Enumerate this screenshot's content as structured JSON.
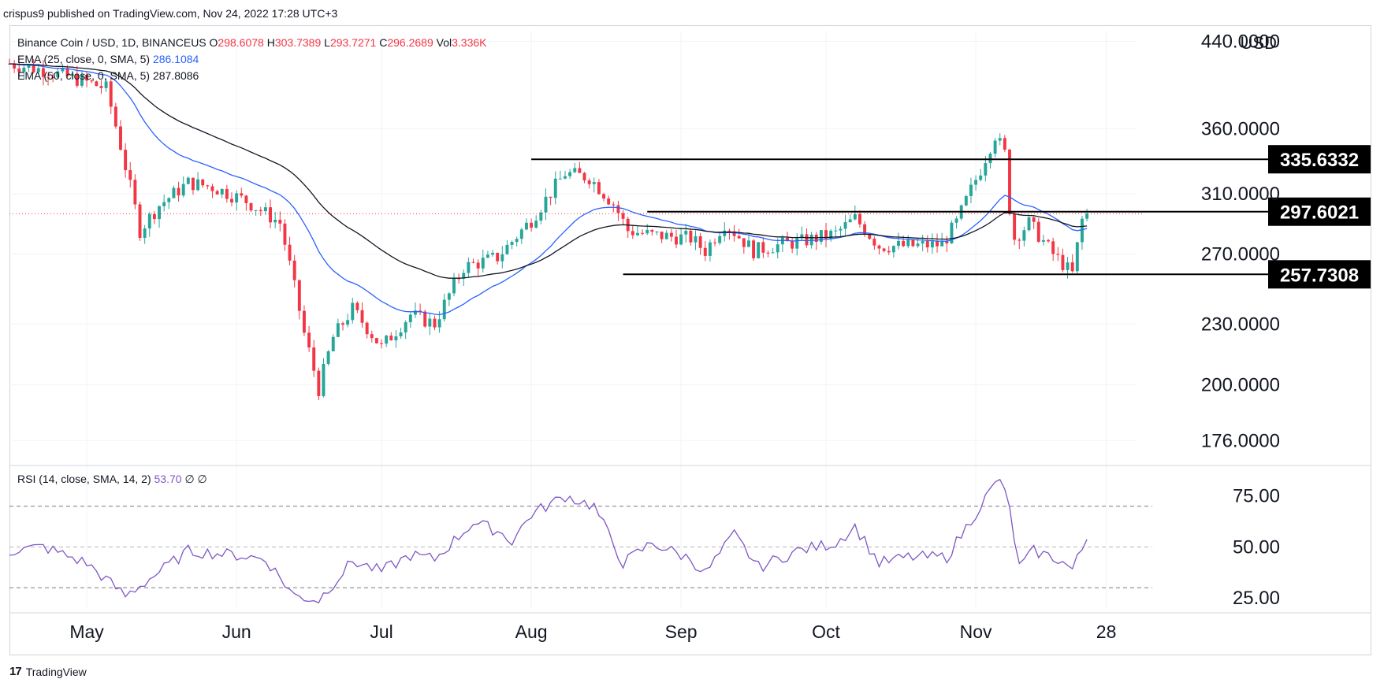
{
  "publisher_line": "crispus9 published on TradingView.com, Nov 24, 2022 17:28 UTC+3",
  "legend": {
    "symbol": "Binance Coin / USD, 1D, BINANCEUS",
    "open_label": "O",
    "open": "298.6078",
    "high_label": "H",
    "high": "303.7389",
    "low_label": "L",
    "low": "293.7271",
    "close_label": "C",
    "close": "296.2689",
    "vol_label": "Vol",
    "vol": "3.336K",
    "ema25_label": "EMA (25, close, 0, SMA, 5)",
    "ema25_value": "286.1084",
    "ema50_label": "EMA (50, close, 0, SMA, 5)",
    "ema50_value": "287.8086"
  },
  "rsi_legend": {
    "label": "RSI (14, close, SMA, 14, 2)",
    "value": "53.70",
    "extra1": "∅",
    "extra2": "∅"
  },
  "currency": "USD",
  "footer": {
    "logo": "17",
    "brand": "TradingView"
  },
  "colors": {
    "up": "#26a69a",
    "down": "#f23645",
    "ema25": "#2962ff",
    "ema50": "#131722",
    "rsi": "#7e57c2",
    "last_price": "#f23645"
  },
  "chart_data": {
    "type": "candlestick",
    "title": "Binance Coin / USD, 1D, BINANCEUS",
    "ylabel": "USD",
    "log_scale": true,
    "ylim": [
      165,
      450
    ],
    "y_ticks": [
      "440.0000",
      "360.0000",
      "310.0000",
      "270.0000",
      "230.0000",
      "200.0000",
      "176.0000"
    ],
    "y_tick_values": [
      440,
      360,
      310,
      270,
      230,
      200,
      176
    ],
    "x_ticks": [
      "May",
      "Jun",
      "Jul",
      "Aug",
      "Sep",
      "Oct",
      "Nov",
      "28"
    ],
    "x_tick_dates": [
      "2022-05-01",
      "2022-06-01",
      "2022-07-01",
      "2022-08-01",
      "2022-09-01",
      "2022-10-01",
      "2022-11-01",
      "2022-11-28"
    ],
    "x_range": [
      "2022-04-15",
      "2022-12-01"
    ],
    "close_key": [
      [
        "2022-04-15",
        418
      ],
      [
        "2022-04-22",
        412
      ],
      [
        "2022-04-30",
        402
      ],
      [
        "2022-05-05",
        395
      ],
      [
        "2022-05-09",
        330
      ],
      [
        "2022-05-12",
        285
      ],
      [
        "2022-05-16",
        302
      ],
      [
        "2022-05-22",
        318
      ],
      [
        "2022-05-27",
        315
      ],
      [
        "2022-06-03",
        305
      ],
      [
        "2022-06-10",
        290
      ],
      [
        "2022-06-13",
        250
      ],
      [
        "2022-06-15",
        225
      ],
      [
        "2022-06-18",
        198
      ],
      [
        "2022-06-21",
        223
      ],
      [
        "2022-06-25",
        238
      ],
      [
        "2022-07-01",
        218
      ],
      [
        "2022-07-07",
        235
      ],
      [
        "2022-07-12",
        230
      ],
      [
        "2022-07-18",
        262
      ],
      [
        "2022-07-25",
        268
      ],
      [
        "2022-07-28",
        278
      ],
      [
        "2022-08-01",
        292
      ],
      [
        "2022-08-08",
        325
      ],
      [
        "2022-08-13",
        322
      ],
      [
        "2022-08-18",
        303
      ],
      [
        "2022-08-21",
        285
      ],
      [
        "2022-08-26",
        282
      ],
      [
        "2022-09-03",
        280
      ],
      [
        "2022-09-06",
        272
      ],
      [
        "2022-09-10",
        290
      ],
      [
        "2022-09-16",
        272
      ],
      [
        "2022-09-20",
        275
      ],
      [
        "2022-09-26",
        278
      ],
      [
        "2022-10-03",
        283
      ],
      [
        "2022-10-07",
        293
      ],
      [
        "2022-10-12",
        275
      ],
      [
        "2022-10-18",
        275
      ],
      [
        "2022-10-25",
        276
      ],
      [
        "2022-10-28",
        290
      ],
      [
        "2022-11-02",
        328
      ],
      [
        "2022-11-05",
        355
      ],
      [
        "2022-11-07",
        340
      ],
      [
        "2022-11-08",
        300
      ],
      [
        "2022-11-09",
        280
      ],
      [
        "2022-11-12",
        290
      ],
      [
        "2022-11-17",
        270
      ],
      [
        "2022-11-21",
        258
      ],
      [
        "2022-11-23",
        292
      ],
      [
        "2022-11-24",
        296.27
      ]
    ],
    "ema25_last": 286.1084,
    "ema50_last": 287.8086,
    "annotations": [
      {
        "type": "hline",
        "value": 335.6332,
        "label": "335.6332",
        "from": "2022-08-01",
        "to": "2022-11-28"
      },
      {
        "type": "hline",
        "value": 297.6021,
        "label": "297.6021",
        "from": "2022-08-25",
        "to": "2022-11-28"
      },
      {
        "type": "hline",
        "value": 257.7308,
        "label": "257.7308",
        "from": "2022-08-20",
        "to": "2022-11-28"
      }
    ],
    "rsi": {
      "label": "RSI (14, close, SMA, 14, 2)",
      "last": 53.7,
      "ylim": [
        20,
        88
      ],
      "y_ticks": [
        "75.00",
        "50.00",
        "25.00"
      ],
      "y_tick_values": [
        75,
        50,
        25
      ],
      "bands": [
        70,
        50,
        30
      ],
      "key": [
        [
          "2022-04-15",
          48
        ],
        [
          "2022-04-22",
          50
        ],
        [
          "2022-05-01",
          42
        ],
        [
          "2022-05-09",
          26
        ],
        [
          "2022-05-15",
          36
        ],
        [
          "2022-05-22",
          48
        ],
        [
          "2022-06-01",
          46
        ],
        [
          "2022-06-07",
          44
        ],
        [
          "2022-06-13",
          26
        ],
        [
          "2022-06-18",
          24
        ],
        [
          "2022-06-25",
          43
        ],
        [
          "2022-07-01",
          38
        ],
        [
          "2022-07-07",
          46
        ],
        [
          "2022-07-12",
          44
        ],
        [
          "2022-07-20",
          62
        ],
        [
          "2022-07-25",
          58
        ],
        [
          "2022-07-28",
          53
        ],
        [
          "2022-08-01",
          66
        ],
        [
          "2022-08-08",
          75
        ],
        [
          "2022-08-14",
          70
        ],
        [
          "2022-08-20",
          42
        ],
        [
          "2022-08-26",
          52
        ],
        [
          "2022-09-03",
          44
        ],
        [
          "2022-09-06",
          37
        ],
        [
          "2022-09-12",
          56
        ],
        [
          "2022-09-17",
          40
        ],
        [
          "2022-09-25",
          48
        ],
        [
          "2022-10-03",
          52
        ],
        [
          "2022-10-07",
          60
        ],
        [
          "2022-10-12",
          42
        ],
        [
          "2022-10-18",
          45
        ],
        [
          "2022-10-26",
          45
        ],
        [
          "2022-11-03",
          74
        ],
        [
          "2022-11-06",
          84
        ],
        [
          "2022-11-08",
          68
        ],
        [
          "2022-11-10",
          40
        ],
        [
          "2022-11-13",
          48
        ],
        [
          "2022-11-18",
          44
        ],
        [
          "2022-11-21",
          39
        ],
        [
          "2022-11-24",
          53.7
        ]
      ]
    }
  }
}
